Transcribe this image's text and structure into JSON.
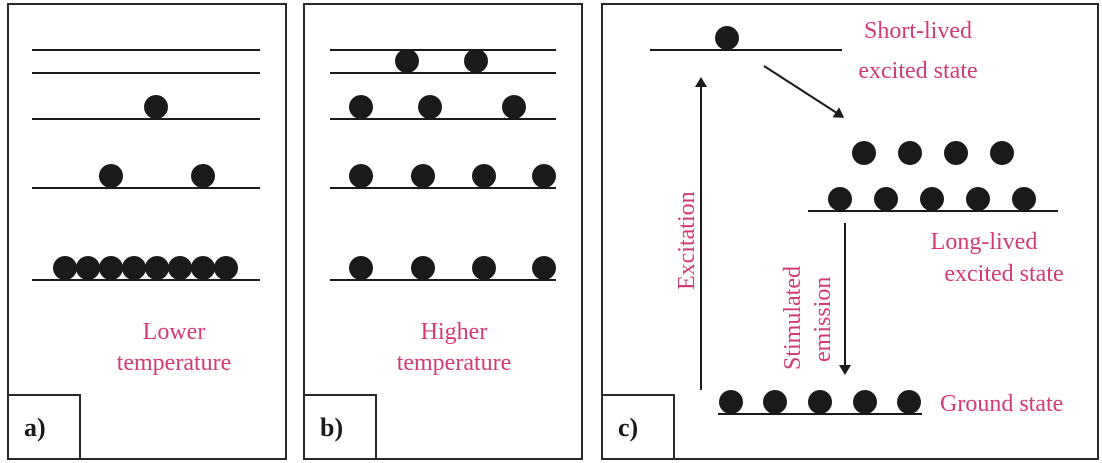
{
  "panels": [
    {
      "id": "a",
      "tag": "a)",
      "caption": [
        "Lower",
        "temperature"
      ],
      "levels": 5,
      "occupancy": [
        8,
        2,
        1,
        0,
        0
      ]
    },
    {
      "id": "b",
      "tag": "b)",
      "caption": [
        "Higher",
        "temperature"
      ],
      "levels": 5,
      "occupancy": [
        4,
        4,
        3,
        2,
        0
      ]
    },
    {
      "id": "c",
      "tag": "c)",
      "states": {
        "short_lived": [
          "Short-lived",
          "excited state"
        ],
        "long_lived": [
          "Long-lived",
          "excited state"
        ],
        "ground": "Ground state"
      },
      "arrows": {
        "excitation": "Excitation",
        "stimulated": [
          "Stimulated",
          "emission"
        ]
      },
      "occupancy": {
        "short_lived": 1,
        "long_lived": 9,
        "ground": 5
      }
    }
  ],
  "colors": {
    "label": "#d33a78",
    "ink": "#1a1a1a"
  }
}
